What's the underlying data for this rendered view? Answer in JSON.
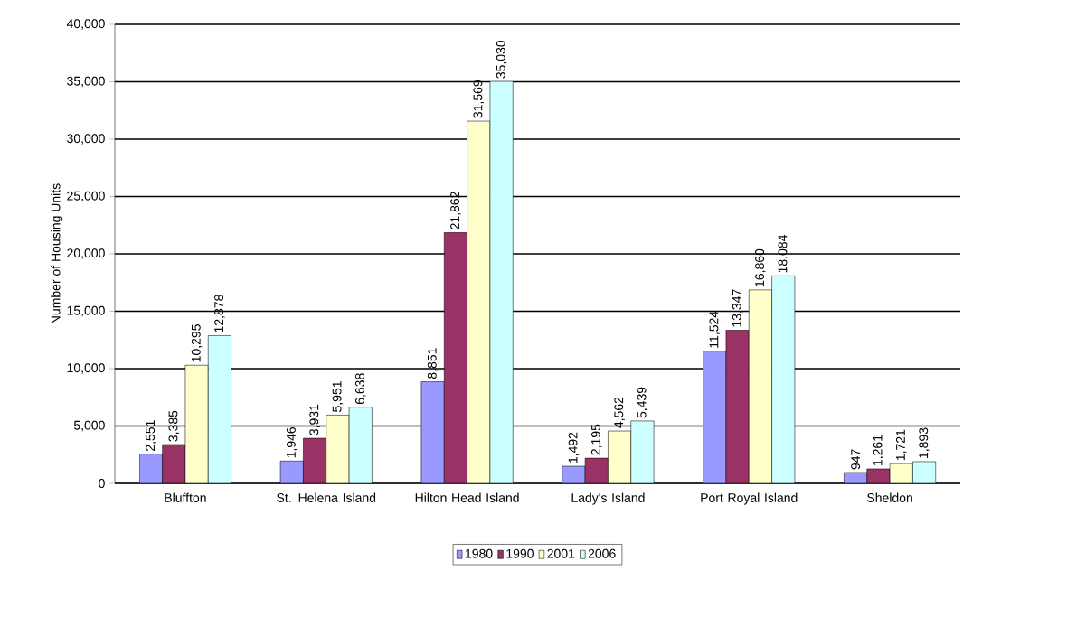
{
  "chart_data": {
    "type": "bar",
    "ylabel": "Number of Housing Units",
    "categories": [
      "Bluffton",
      "St. Helena Island",
      "Hilton Head Island",
      "Lady's Island",
      "Port Royal Island",
      "Sheldon"
    ],
    "series": [
      {
        "name": "1980",
        "color": "#9999ff",
        "values": [
          2551,
          1946,
          8851,
          1492,
          11524,
          947
        ],
        "value_labels": [
          "2,551",
          "1,946",
          "8,851",
          "1,492",
          "11,524",
          "947"
        ]
      },
      {
        "name": "1990",
        "color": "#993366",
        "values": [
          3385,
          3931,
          21862,
          2195,
          13347,
          1261
        ],
        "value_labels": [
          "3,385",
          "3,931",
          "21,862",
          "2,195",
          "13,347",
          "1,261"
        ]
      },
      {
        "name": "2001",
        "color": "#ffffcc",
        "values": [
          10295,
          5951,
          31569,
          4562,
          16860,
          1721
        ],
        "value_labels": [
          "10,295",
          "5,951",
          "31,569",
          "4,562",
          "16,860",
          "1,721"
        ]
      },
      {
        "name": "2006",
        "color": "#ccffff",
        "values": [
          12878,
          6638,
          35030,
          5439,
          18084,
          1893
        ],
        "value_labels": [
          "12,878",
          "6,638",
          "35,030",
          "5,439",
          "18,084",
          "1,893"
        ]
      }
    ],
    "ylim": [
      0,
      40000
    ],
    "yticks": [
      0,
      {
        "value": 5000,
        "label": "5,000"
      },
      {
        "value": 10000,
        "label": "10,000"
      },
      {
        "value": 15000,
        "label": "15,000"
      },
      {
        "value": 20000,
        "label": "20,000"
      },
      {
        "value": 25000,
        "label": "25,000"
      },
      {
        "value": 30000,
        "label": "30,000"
      },
      {
        "value": 35000,
        "label": "35,000"
      },
      {
        "value": 40000,
        "label": "40,000"
      }
    ],
    "grid": "y",
    "legend": "bottom"
  }
}
